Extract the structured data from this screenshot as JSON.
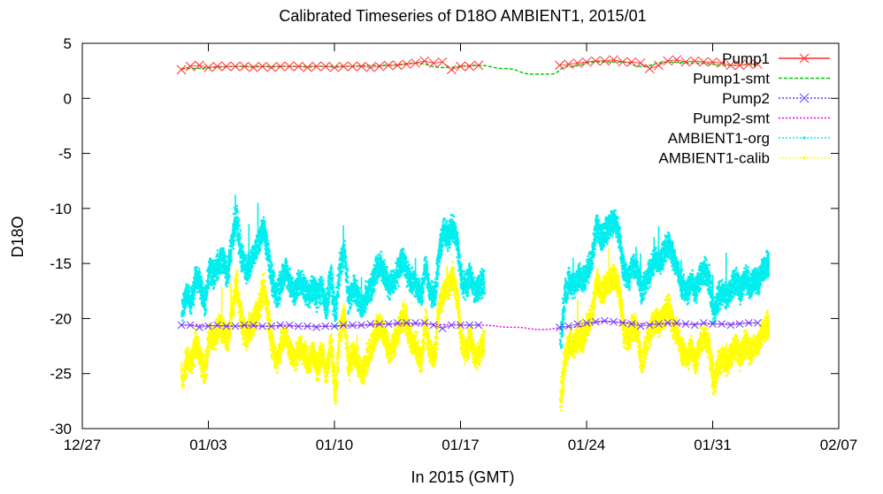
{
  "chart_data": {
    "type": "scatter",
    "title": "Calibrated Timeseries of D18O AMBIENT1, 2015/01",
    "xlabel": "In 2015 (GMT)",
    "ylabel": "D18O",
    "xlim": [
      "2014-12-27",
      "2015-02-07"
    ],
    "ylim": [
      -30,
      5
    ],
    "x_ticks": [
      "12/27",
      "01/03",
      "01/10",
      "01/17",
      "01/24",
      "01/31",
      "02/07"
    ],
    "y_ticks": [
      "5",
      "0",
      "-5",
      "-10",
      "-15",
      "-20",
      "-25",
      "-30"
    ],
    "legend_position": "top-right",
    "colors": {
      "pump1": "#ff2a2a",
      "pump1_smt": "#00cc00",
      "pump2": "#6a3cff",
      "pump2_smt": "#ee00ee",
      "ambient1_org": "#00eeee",
      "ambient1_calib": "#ffff00"
    },
    "series": [
      {
        "name": "Pump1",
        "marker": "x",
        "x": [
          "2015-01-01 12:00",
          "2015-01-02 00:00",
          "2015-01-02 12:00",
          "2015-01-03 00:00",
          "2015-01-03 12:00",
          "2015-01-04 00:00",
          "2015-01-04 12:00",
          "2015-01-05 00:00",
          "2015-01-05 12:00",
          "2015-01-06 00:00",
          "2015-01-06 12:00",
          "2015-01-07 00:00",
          "2015-01-07 12:00",
          "2015-01-08 00:00",
          "2015-01-08 12:00",
          "2015-01-09 00:00",
          "2015-01-09 12:00",
          "2015-01-10 00:00",
          "2015-01-10 12:00",
          "2015-01-11 00:00",
          "2015-01-11 12:00",
          "2015-01-12 00:00",
          "2015-01-12 12:00",
          "2015-01-13 00:00",
          "2015-01-13 12:00",
          "2015-01-14 00:00",
          "2015-01-14 12:00",
          "2015-01-15 00:00",
          "2015-01-15 12:00",
          "2015-01-16 00:00",
          "2015-01-16 12:00",
          "2015-01-17 00:00",
          "2015-01-17 12:00",
          "2015-01-18 00:00",
          "2015-01-22 12:00",
          "2015-01-23 00:00",
          "2015-01-23 12:00",
          "2015-01-24 00:00",
          "2015-01-24 12:00",
          "2015-01-25 00:00",
          "2015-01-25 12:00",
          "2015-01-26 00:00",
          "2015-01-26 12:00",
          "2015-01-27 00:00",
          "2015-01-27 12:00",
          "2015-01-28 00:00",
          "2015-01-28 12:00",
          "2015-01-29 00:00",
          "2015-01-29 12:00",
          "2015-01-30 00:00",
          "2015-01-30 12:00",
          "2015-01-31 00:00",
          "2015-01-31 12:00",
          "2015-02-01 00:00",
          "2015-02-01 12:00",
          "2015-02-02 00:00",
          "2015-02-02 12:00"
        ],
        "y": [
          2.6,
          2.9,
          3.0,
          2.8,
          2.9,
          2.9,
          2.9,
          2.9,
          2.8,
          2.9,
          2.8,
          2.9,
          2.9,
          2.9,
          2.8,
          2.9,
          2.9,
          2.8,
          2.9,
          2.9,
          2.9,
          2.8,
          2.9,
          3.0,
          3.0,
          3.1,
          3.2,
          3.4,
          3.2,
          3.3,
          2.6,
          2.9,
          2.9,
          3.0,
          3.0,
          3.1,
          3.2,
          3.3,
          3.4,
          3.4,
          3.5,
          3.3,
          3.3,
          3.2,
          2.7,
          3.0,
          3.4,
          3.5,
          3.3,
          3.4,
          3.3,
          3.3,
          3.2,
          3.0,
          3.0,
          3.1,
          3.1
        ]
      },
      {
        "name": "Pump1-smt",
        "x": [
          "2015-01-01 12:00",
          "2015-01-05 00:00",
          "2015-01-10 00:00",
          "2015-01-13 00:00",
          "2015-01-14 12:00",
          "2015-01-16 00:00",
          "2015-01-18 00:00",
          "2015-01-19 12:00",
          "2015-01-21 00:00",
          "2015-01-22 00:00",
          "2015-01-23 00:00",
          "2015-01-24 12:00",
          "2015-01-26 00:00",
          "2015-01-27 00:00",
          "2015-01-28 12:00",
          "2015-01-30 00:00",
          "2015-02-01 00:00",
          "2015-02-02 12:00"
        ],
        "y": [
          2.7,
          2.9,
          2.9,
          3.0,
          3.2,
          2.8,
          3.0,
          2.7,
          2.2,
          2.2,
          2.9,
          3.3,
          3.3,
          2.9,
          3.3,
          3.2,
          3.0,
          3.1
        ]
      },
      {
        "name": "Pump2",
        "marker": "x",
        "x": [
          "2015-01-01 12:00",
          "2015-01-02 00:00",
          "2015-01-02 12:00",
          "2015-01-03 00:00",
          "2015-01-03 12:00",
          "2015-01-04 00:00",
          "2015-01-04 12:00",
          "2015-01-05 00:00",
          "2015-01-05 12:00",
          "2015-01-06 00:00",
          "2015-01-06 12:00",
          "2015-01-07 00:00",
          "2015-01-07 12:00",
          "2015-01-08 00:00",
          "2015-01-08 12:00",
          "2015-01-09 00:00",
          "2015-01-09 12:00",
          "2015-01-10 00:00",
          "2015-01-10 12:00",
          "2015-01-11 00:00",
          "2015-01-11 12:00",
          "2015-01-12 00:00",
          "2015-01-12 12:00",
          "2015-01-13 00:00",
          "2015-01-13 12:00",
          "2015-01-14 00:00",
          "2015-01-14 12:00",
          "2015-01-15 00:00",
          "2015-01-15 12:00",
          "2015-01-16 00:00",
          "2015-01-16 12:00",
          "2015-01-17 00:00",
          "2015-01-17 12:00",
          "2015-01-18 00:00",
          "2015-01-22 12:00",
          "2015-01-23 00:00",
          "2015-01-23 12:00",
          "2015-01-24 00:00",
          "2015-01-24 12:00",
          "2015-01-25 00:00",
          "2015-01-25 12:00",
          "2015-01-26 00:00",
          "2015-01-26 12:00",
          "2015-01-27 00:00",
          "2015-01-27 12:00",
          "2015-01-28 00:00",
          "2015-01-28 12:00",
          "2015-01-29 00:00",
          "2015-01-29 12:00",
          "2015-01-30 00:00",
          "2015-01-30 12:00",
          "2015-01-31 00:00",
          "2015-01-31 12:00",
          "2015-02-01 00:00",
          "2015-02-01 12:00",
          "2015-02-02 00:00",
          "2015-02-02 12:00"
        ],
        "y": [
          -20.6,
          -20.6,
          -20.8,
          -20.7,
          -20.6,
          -20.7,
          -20.7,
          -20.6,
          -20.6,
          -20.7,
          -20.7,
          -20.6,
          -20.6,
          -20.7,
          -20.7,
          -20.8,
          -20.7,
          -20.7,
          -20.6,
          -20.6,
          -20.6,
          -20.5,
          -20.5,
          -20.5,
          -20.4,
          -20.4,
          -20.4,
          -20.4,
          -20.6,
          -20.9,
          -20.6,
          -20.6,
          -20.6,
          -20.6,
          -20.8,
          -20.7,
          -20.5,
          -20.4,
          -20.3,
          -20.2,
          -20.3,
          -20.4,
          -20.5,
          -20.7,
          -20.6,
          -20.5,
          -20.4,
          -20.4,
          -20.5,
          -20.6,
          -20.4,
          -20.5,
          -20.5,
          -20.6,
          -20.5,
          -20.4,
          -20.4
        ]
      },
      {
        "name": "Pump2-smt",
        "x": [
          "2015-01-01 12:00",
          "2015-01-05 00:00",
          "2015-01-10 00:00",
          "2015-01-14 00:00",
          "2015-01-18 00:00",
          "2015-01-20 00:00",
          "2015-01-21 12:00",
          "2015-01-23 00:00",
          "2015-01-25 00:00",
          "2015-01-28 00:00",
          "2015-01-31 00:00",
          "2015-02-02 12:00"
        ],
        "y": [
          -20.6,
          -20.7,
          -20.7,
          -20.5,
          -20.6,
          -20.8,
          -21.0,
          -20.8,
          -20.3,
          -20.5,
          -20.5,
          -20.4
        ]
      },
      {
        "name": "AMBIENT1-org",
        "x": [
          "2015-01-01 12:00",
          "2015-01-01 18:00",
          "2015-01-02 00:00",
          "2015-01-02 06:00",
          "2015-01-02 12:00",
          "2015-01-02 18:00",
          "2015-01-03 00:00",
          "2015-01-03 06:00",
          "2015-01-03 12:00",
          "2015-01-03 18:00",
          "2015-01-04 00:00",
          "2015-01-04 06:00",
          "2015-01-04 12:00",
          "2015-01-04 18:00",
          "2015-01-05 00:00",
          "2015-01-05 06:00",
          "2015-01-05 12:00",
          "2015-01-05 18:00",
          "2015-01-06 00:00",
          "2015-01-06 06:00",
          "2015-01-06 12:00",
          "2015-01-06 18:00",
          "2015-01-07 00:00",
          "2015-01-07 06:00",
          "2015-01-07 12:00",
          "2015-01-07 18:00",
          "2015-01-08 00:00",
          "2015-01-08 06:00",
          "2015-01-08 12:00",
          "2015-01-08 18:00",
          "2015-01-09 00:00",
          "2015-01-09 06:00",
          "2015-01-09 12:00",
          "2015-01-09 18:00",
          "2015-01-10 00:00",
          "2015-01-10 06:00",
          "2015-01-10 12:00",
          "2015-01-10 18:00",
          "2015-01-11 00:00",
          "2015-01-11 06:00",
          "2015-01-11 12:00",
          "2015-01-11 18:00",
          "2015-01-12 00:00",
          "2015-01-12 06:00",
          "2015-01-12 12:00",
          "2015-01-12 18:00",
          "2015-01-13 00:00",
          "2015-01-13 06:00",
          "2015-01-13 12:00",
          "2015-01-13 18:00",
          "2015-01-14 00:00",
          "2015-01-14 06:00",
          "2015-01-14 12:00",
          "2015-01-14 18:00",
          "2015-01-15 00:00",
          "2015-01-15 06:00",
          "2015-01-15 12:00",
          "2015-01-15 18:00",
          "2015-01-16 00:00",
          "2015-01-16 06:00",
          "2015-01-16 12:00",
          "2015-01-16 18:00",
          "2015-01-17 00:00",
          "2015-01-17 06:00",
          "2015-01-17 12:00",
          "2015-01-17 18:00",
          "2015-01-18 00:00",
          "2015-01-18 06:00",
          "2015-01-22 12:00",
          "2015-01-22 18:00",
          "2015-01-23 00:00",
          "2015-01-23 06:00",
          "2015-01-23 12:00",
          "2015-01-23 18:00",
          "2015-01-24 00:00",
          "2015-01-24 06:00",
          "2015-01-24 12:00",
          "2015-01-24 18:00",
          "2015-01-25 00:00",
          "2015-01-25 06:00",
          "2015-01-25 12:00",
          "2015-01-25 18:00",
          "2015-01-26 00:00",
          "2015-01-26 06:00",
          "2015-01-26 12:00",
          "2015-01-26 18:00",
          "2015-01-27 00:00",
          "2015-01-27 06:00",
          "2015-01-27 12:00",
          "2015-01-27 18:00",
          "2015-01-28 00:00",
          "2015-01-28 06:00",
          "2015-01-28 12:00",
          "2015-01-28 18:00",
          "2015-01-29 00:00",
          "2015-01-29 06:00",
          "2015-01-29 12:00",
          "2015-01-29 18:00",
          "2015-01-30 00:00",
          "2015-01-30 06:00",
          "2015-01-30 12:00",
          "2015-01-30 18:00",
          "2015-01-31 00:00",
          "2015-01-31 06:00",
          "2015-01-31 12:00",
          "2015-01-31 18:00",
          "2015-02-01 00:00",
          "2015-02-01 06:00",
          "2015-02-01 12:00",
          "2015-02-01 18:00",
          "2015-02-02 00:00",
          "2015-02-02 06:00",
          "2015-02-02 12:00",
          "2015-02-02 18:00",
          "2015-02-03 00:00"
        ],
        "y": [
          -19.0,
          -17.5,
          -18.5,
          -16.0,
          -17.0,
          -18.5,
          -15.5,
          -16.0,
          -15.0,
          -14.5,
          -16.0,
          -13.0,
          -10.5,
          -14.0,
          -15.5,
          -15.0,
          -14.0,
          -13.0,
          -11.5,
          -14.0,
          -16.5,
          -18.0,
          -16.5,
          -15.5,
          -17.0,
          -17.5,
          -16.5,
          -17.0,
          -18.0,
          -17.0,
          -18.0,
          -17.0,
          -19.0,
          -16.0,
          -20.0,
          -15.0,
          -14.0,
          -18.5,
          -17.0,
          -18.0,
          -19.0,
          -17.5,
          -17.0,
          -15.5,
          -15.0,
          -16.0,
          -17.0,
          -16.5,
          -15.5,
          -14.5,
          -16.0,
          -16.5,
          -17.0,
          -18.0,
          -15.0,
          -17.5,
          -18.0,
          -14.0,
          -12.0,
          -12.5,
          -11.5,
          -13.0,
          -16.5,
          -17.0,
          -16.0,
          -17.5,
          -17.0,
          -16.5,
          -22.0,
          -17.5,
          -16.5,
          -17.0,
          -16.0,
          -16.5,
          -15.5,
          -14.5,
          -11.5,
          -12.5,
          -12.0,
          -11.5,
          -11.0,
          -12.5,
          -15.5,
          -16.5,
          -15.0,
          -15.5,
          -17.5,
          -16.5,
          -15.5,
          -14.5,
          -15.0,
          -14.0,
          -13.0,
          -14.5,
          -15.5,
          -17.0,
          -17.5,
          -16.5,
          -17.5,
          -16.0,
          -15.5,
          -16.5,
          -19.5,
          -18.0,
          -17.5,
          -18.0,
          -17.0,
          -16.5,
          -17.5,
          -16.0,
          -17.0,
          -16.5,
          -16.5,
          -15.5,
          -15.0
        ]
      },
      {
        "name": "AMBIENT1-calib",
        "x": [
          "2015-01-01 12:00",
          "2015-01-01 18:00",
          "2015-01-02 00:00",
          "2015-01-02 06:00",
          "2015-01-02 12:00",
          "2015-01-02 18:00",
          "2015-01-03 00:00",
          "2015-01-03 06:00",
          "2015-01-03 12:00",
          "2015-01-03 18:00",
          "2015-01-04 00:00",
          "2015-01-04 06:00",
          "2015-01-04 12:00",
          "2015-01-04 18:00",
          "2015-01-05 00:00",
          "2015-01-05 06:00",
          "2015-01-05 12:00",
          "2015-01-05 18:00",
          "2015-01-06 00:00",
          "2015-01-06 06:00",
          "2015-01-06 12:00",
          "2015-01-06 18:00",
          "2015-01-07 00:00",
          "2015-01-07 06:00",
          "2015-01-07 12:00",
          "2015-01-07 18:00",
          "2015-01-08 00:00",
          "2015-01-08 06:00",
          "2015-01-08 12:00",
          "2015-01-08 18:00",
          "2015-01-09 00:00",
          "2015-01-09 06:00",
          "2015-01-09 12:00",
          "2015-01-09 18:00",
          "2015-01-10 00:00",
          "2015-01-10 06:00",
          "2015-01-10 12:00",
          "2015-01-10 18:00",
          "2015-01-11 00:00",
          "2015-01-11 06:00",
          "2015-01-11 12:00",
          "2015-01-11 18:00",
          "2015-01-12 00:00",
          "2015-01-12 06:00",
          "2015-01-12 12:00",
          "2015-01-12 18:00",
          "2015-01-13 00:00",
          "2015-01-13 06:00",
          "2015-01-13 12:00",
          "2015-01-13 18:00",
          "2015-01-14 00:00",
          "2015-01-14 06:00",
          "2015-01-14 12:00",
          "2015-01-14 18:00",
          "2015-01-15 00:00",
          "2015-01-15 06:00",
          "2015-01-15 12:00",
          "2015-01-15 18:00",
          "2015-01-16 00:00",
          "2015-01-16 06:00",
          "2015-01-16 12:00",
          "2015-01-16 18:00",
          "2015-01-17 00:00",
          "2015-01-17 06:00",
          "2015-01-17 12:00",
          "2015-01-17 18:00",
          "2015-01-18 00:00",
          "2015-01-18 06:00",
          "2015-01-22 12:00",
          "2015-01-22 18:00",
          "2015-01-23 00:00",
          "2015-01-23 06:00",
          "2015-01-23 12:00",
          "2015-01-23 18:00",
          "2015-01-24 00:00",
          "2015-01-24 06:00",
          "2015-01-24 12:00",
          "2015-01-24 18:00",
          "2015-01-25 00:00",
          "2015-01-25 06:00",
          "2015-01-25 12:00",
          "2015-01-25 18:00",
          "2015-01-26 00:00",
          "2015-01-26 06:00",
          "2015-01-26 12:00",
          "2015-01-26 18:00",
          "2015-01-27 00:00",
          "2015-01-27 06:00",
          "2015-01-27 12:00",
          "2015-01-27 18:00",
          "2015-01-28 00:00",
          "2015-01-28 06:00",
          "2015-01-28 12:00",
          "2015-01-28 18:00",
          "2015-01-29 00:00",
          "2015-01-29 06:00",
          "2015-01-29 12:00",
          "2015-01-29 18:00",
          "2015-01-30 00:00",
          "2015-01-30 06:00",
          "2015-01-30 12:00",
          "2015-01-30 18:00",
          "2015-01-31 00:00",
          "2015-01-31 06:00",
          "2015-01-31 12:00",
          "2015-01-31 18:00",
          "2015-02-01 00:00",
          "2015-02-01 06:00",
          "2015-02-01 12:00",
          "2015-02-01 18:00",
          "2015-02-02 00:00",
          "2015-02-02 06:00",
          "2015-02-02 12:00",
          "2015-02-02 18:00",
          "2015-02-03 00:00"
        ],
        "y": [
          -25.5,
          -23.5,
          -24.0,
          -22.0,
          -23.5,
          -25.0,
          -21.5,
          -22.0,
          -20.5,
          -21.0,
          -22.0,
          -19.5,
          -16.5,
          -20.0,
          -21.5,
          -21.0,
          -20.0,
          -19.0,
          -17.0,
          -19.5,
          -22.5,
          -24.0,
          -22.0,
          -21.5,
          -23.0,
          -23.5,
          -22.5,
          -23.0,
          -24.0,
          -23.0,
          -24.5,
          -23.0,
          -25.0,
          -22.0,
          -27.0,
          -21.0,
          -19.5,
          -24.5,
          -23.0,
          -24.0,
          -25.0,
          -23.5,
          -22.5,
          -21.0,
          -20.5,
          -21.5,
          -23.0,
          -22.0,
          -21.0,
          -19.5,
          -21.0,
          -22.0,
          -22.5,
          -24.0,
          -20.0,
          -23.0,
          -23.5,
          -19.0,
          -17.5,
          -17.0,
          -16.0,
          -18.0,
          -22.0,
          -23.0,
          -21.5,
          -23.5,
          -23.0,
          -22.0,
          -27.5,
          -23.5,
          -22.0,
          -22.5,
          -21.5,
          -22.0,
          -20.5,
          -19.5,
          -16.5,
          -17.5,
          -17.0,
          -16.5,
          -16.0,
          -17.5,
          -21.0,
          -22.0,
          -20.5,
          -21.0,
          -24.0,
          -22.5,
          -21.0,
          -20.0,
          -20.5,
          -19.5,
          -19.0,
          -20.5,
          -21.5,
          -23.0,
          -23.5,
          -22.5,
          -24.0,
          -22.0,
          -21.5,
          -22.5,
          -26.0,
          -24.0,
          -23.5,
          -24.0,
          -23.0,
          -22.5,
          -23.5,
          -22.0,
          -23.0,
          -22.5,
          -22.0,
          -21.0,
          -20.5
        ]
      }
    ]
  }
}
